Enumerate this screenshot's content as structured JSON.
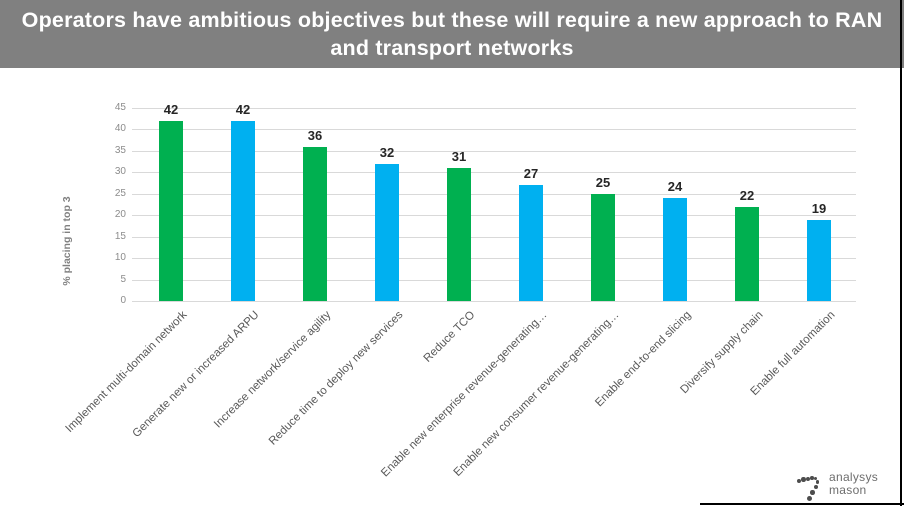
{
  "header": {
    "title": "Operators have ambitious objectives but these will require a new approach to RAN and transport networks",
    "background": "#808080",
    "text_color": "#ffffff"
  },
  "chart_data": {
    "type": "bar",
    "title": "",
    "ylabel": "% placing in top 3",
    "xlabel": "",
    "ylim": [
      0,
      45
    ],
    "yticks": [
      0,
      5,
      10,
      15,
      20,
      25,
      30,
      35,
      40,
      45
    ],
    "grid": true,
    "legend": "none",
    "value_labels_shown": true,
    "categories": [
      "Implement multi-domain network",
      "Generate new or increased ARPU",
      "Increase network/service agility",
      "Reduce time to deploy new services",
      "Reduce TCO",
      "Enable new enterprise revenue-generating…",
      "Enable new consumer revenue-generating…",
      "Enable end-to-end slicing",
      "Diversify supply chain",
      "Enable full automation"
    ],
    "values": [
      42,
      42,
      36,
      32,
      31,
      27,
      25,
      24,
      22,
      19
    ],
    "bar_colors": [
      "#00B050",
      "#00B0F0",
      "#00B050",
      "#00B0F0",
      "#00B050",
      "#00B0F0",
      "#00B050",
      "#00B0F0",
      "#00B050",
      "#00B0F0"
    ],
    "palette": {
      "green": "#00B050",
      "blue": "#00B0F0"
    },
    "gridline_color": "#d9d9d9",
    "tick_label_color": "#8c8c8c",
    "category_label_color": "#595959",
    "value_label_color": "#262626"
  },
  "logo": {
    "line1": "analysys",
    "line2": "mason",
    "text_color": "#6e6e6e"
  }
}
